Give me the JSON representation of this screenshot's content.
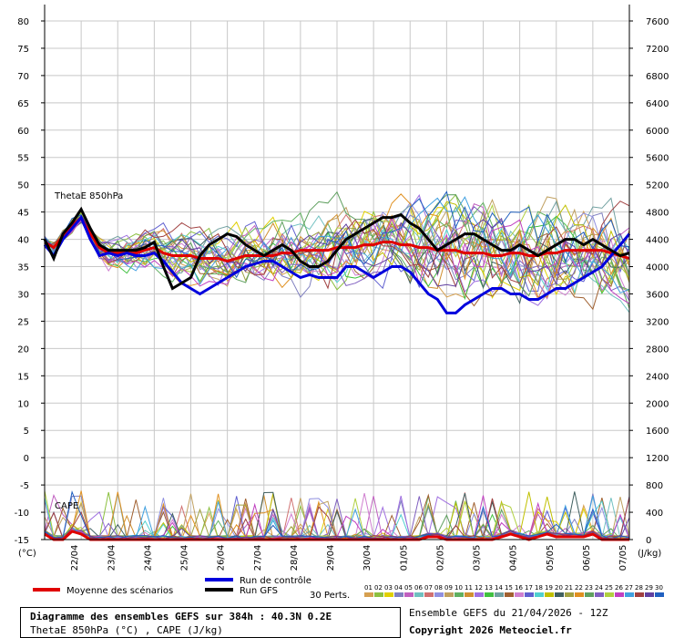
{
  "chart_data": {
    "type": "line",
    "title": "Diagramme des ensembles GEFS sur 384h : 40.3N 0.2E",
    "subtitle": "ThetaE 850hPa (°C) , CAPE (J/kg)",
    "panel_labels": [
      "ThetaE 850hPa",
      "CAPE"
    ],
    "left_axis": {
      "unit": "(°C)",
      "ylim": [
        -15,
        80
      ],
      "ticks": [
        "80",
        "75",
        "70",
        "65",
        "60",
        "55",
        "50",
        "45",
        "40",
        "35",
        "30",
        "25",
        "20",
        "15",
        "10",
        "5",
        "0",
        "-5",
        "-10",
        "-15"
      ]
    },
    "right_axis": {
      "unit": "(J/kg)",
      "ylim": [
        0,
        7600
      ],
      "ticks": [
        "7600",
        "7200",
        "6800",
        "6400",
        "6000",
        "5600",
        "5200",
        "4800",
        "4400",
        "4000",
        "3600",
        "3200",
        "2800",
        "2400",
        "2000",
        "1600",
        "1200",
        "800",
        "400",
        "0"
      ]
    },
    "x_axis": {
      "unit": "step_6h",
      "steps": 64,
      "categories": [
        "22/04",
        "23/04",
        "24/04",
        "25/04",
        "26/04",
        "27/04",
        "28/04",
        "29/04",
        "30/04",
        "01/05",
        "02/05",
        "03/05",
        "04/05",
        "05/05",
        "06/05",
        "07/05"
      ],
      "category_steps": [
        4,
        8,
        12,
        16,
        20,
        24,
        28,
        32,
        36,
        40,
        44,
        48,
        52,
        56,
        60,
        64
      ]
    },
    "grid": true,
    "series_thetae": [
      {
        "name": "Moyenne des scénarios",
        "color": "#e00000",
        "values": [
          39.5,
          38.5,
          40.5,
          42.5,
          44,
          41,
          38.5,
          37.5,
          37.5,
          37.5,
          37.5,
          38,
          38.5,
          37.5,
          37,
          37,
          37,
          36.5,
          36.5,
          36.5,
          36,
          36.5,
          37,
          37,
          37,
          37,
          37.5,
          37.5,
          38,
          38,
          38,
          38,
          38.5,
          38.5,
          38.5,
          39,
          39,
          39.5,
          39.5,
          39,
          39,
          38.5,
          38.5,
          38,
          38,
          38,
          37.5,
          37.5,
          37.5,
          37,
          37,
          37.5,
          37.5,
          37,
          37,
          37.5,
          37.5,
          38,
          38,
          38,
          38,
          38,
          37.5,
          37,
          36.5
        ]
      },
      {
        "name": "Run de contrôle",
        "color": "#0000dd",
        "values": [
          39,
          37,
          40,
          42,
          44,
          40,
          37,
          37.5,
          37,
          37.5,
          37,
          37,
          37.5,
          36,
          34,
          32,
          31,
          30,
          31,
          32,
          33,
          34,
          35,
          35.5,
          36,
          36,
          35,
          34,
          33,
          33.5,
          33,
          33,
          33,
          35,
          35,
          34,
          33,
          34,
          35,
          35,
          34,
          32,
          30,
          29,
          26.5,
          26.5,
          28,
          29,
          30,
          31,
          31,
          30,
          30,
          29,
          29,
          30,
          31,
          31,
          32,
          33,
          34,
          35,
          37,
          39,
          41
        ]
      },
      {
        "name": "Run GFS",
        "color": "#000000",
        "values": [
          40,
          36.5,
          41,
          43,
          45.5,
          42,
          39,
          38,
          38,
          38,
          38,
          38.5,
          39.5,
          35,
          31,
          32,
          33,
          37,
          39,
          40,
          41,
          40.5,
          39,
          38,
          37,
          38,
          39,
          38,
          36,
          35,
          35,
          36,
          38,
          40,
          41,
          42,
          43,
          44,
          44,
          44.5,
          43,
          42,
          40,
          38,
          39,
          40,
          41,
          41,
          40,
          39,
          38,
          38,
          39,
          38,
          37,
          38,
          39,
          40,
          40,
          39,
          40,
          39,
          38,
          37,
          37.5
        ]
      }
    ],
    "series_cape": [
      {
        "name": "Moyenne des scénarios",
        "values": [
          80,
          0,
          0,
          120,
          80,
          0,
          0,
          0,
          0,
          0,
          0,
          0,
          0,
          0,
          0,
          0,
          0,
          0,
          0,
          0,
          0,
          0,
          0,
          0,
          0,
          0,
          0,
          0,
          0,
          0,
          0,
          0,
          0,
          0,
          0,
          0,
          0,
          0,
          0,
          0,
          0,
          0,
          40,
          40,
          0,
          0,
          0,
          0,
          0,
          0,
          40,
          80,
          40,
          0,
          40,
          80,
          40,
          40,
          40,
          40,
          80,
          0,
          0,
          0,
          0
        ]
      }
    ],
    "perturbation_count_label": "30 Perts.",
    "perturbation_ids": [
      "01",
      "02",
      "03",
      "04",
      "05",
      "06",
      "07",
      "08",
      "09",
      "10",
      "11",
      "12",
      "13",
      "14",
      "15",
      "16",
      "17",
      "18",
      "19",
      "20",
      "21",
      "22",
      "23",
      "24",
      "25",
      "26",
      "27",
      "28",
      "29",
      "30"
    ],
    "perturbation_colors": [
      "#d6a050",
      "#8cc040",
      "#e0d000",
      "#8080c0",
      "#c060c0",
      "#70c0c0",
      "#d07070",
      "#9090e0",
      "#c0a060",
      "#60b060",
      "#d09030",
      "#a070e0",
      "#40c040",
      "#70a0a0",
      "#a06030",
      "#d080d0",
      "#6060d0",
      "#50d0d0",
      "#c0c000",
      "#406060",
      "#a0a040",
      "#e09020",
      "#60a060",
      "#8060c0",
      "#b0d040",
      "#c040c0",
      "#40a0e0",
      "#a04040",
      "#6040a0",
      "#2060c0"
    ],
    "legend": {
      "mean": "Moyenne des scénarios",
      "control": "Run de contrôle",
      "gfs": "Run GFS"
    }
  },
  "footer": {
    "title": "Diagramme des ensembles GEFS sur 384h : 40.3N 0.2E",
    "subtitle": "ThetaE 850hPa (°C) , CAPE (J/kg)",
    "ensemble": "Ensemble GEFS du 21/04/2026 - 12Z",
    "copyright": "Copyright 2026 Meteociel.fr"
  }
}
